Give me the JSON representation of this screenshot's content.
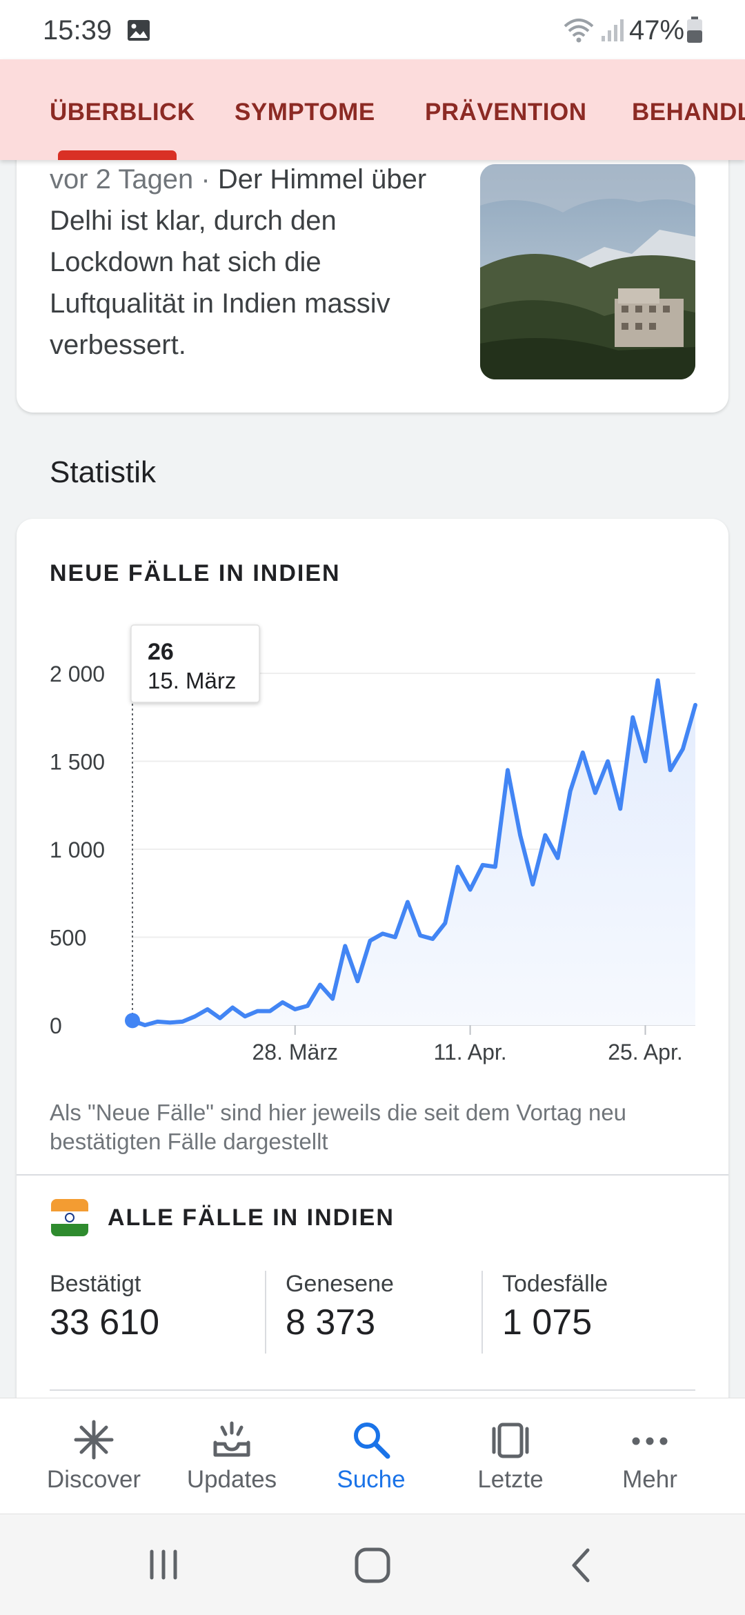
{
  "status_bar": {
    "time": "15:39",
    "battery": "47%"
  },
  "tabs": [
    {
      "label": "ÜBERBLICK",
      "active": true
    },
    {
      "label": "SYMPTOME"
    },
    {
      "label": "PRÄVENTION"
    },
    {
      "label": "BEHANDL"
    }
  ],
  "article": {
    "date": "vor 2 Tagen · ",
    "text": "Der Himmel über Delhi ist klar, durch den Lockdown hat sich die Luftqualität in Indien massiv verbessert."
  },
  "section_title": "Statistik",
  "chart_data": {
    "type": "area",
    "title": "NEUE FÄLLE IN INDIEN",
    "x_tick_labels": [
      "28. März",
      "11. Apr.",
      "25. Apr."
    ],
    "x_tick_dates": [
      "2020-03-28",
      "2020-04-11",
      "2020-04-25"
    ],
    "y_tick_labels": [
      "0",
      "500",
      "1 000",
      "1 500",
      "2 000"
    ],
    "y_ticks": [
      0,
      500,
      1000,
      1500,
      2000
    ],
    "ylim": [
      0,
      2000
    ],
    "grid": true,
    "x": [
      "2020-03-15",
      "2020-03-16",
      "2020-03-17",
      "2020-03-18",
      "2020-03-19",
      "2020-03-20",
      "2020-03-21",
      "2020-03-22",
      "2020-03-23",
      "2020-03-24",
      "2020-03-25",
      "2020-03-26",
      "2020-03-27",
      "2020-03-28",
      "2020-03-29",
      "2020-03-30",
      "2020-03-31",
      "2020-04-01",
      "2020-04-02",
      "2020-04-03",
      "2020-04-04",
      "2020-04-05",
      "2020-04-06",
      "2020-04-07",
      "2020-04-08",
      "2020-04-09",
      "2020-04-10",
      "2020-04-11",
      "2020-04-12",
      "2020-04-13",
      "2020-04-14",
      "2020-04-15",
      "2020-04-16",
      "2020-04-17",
      "2020-04-18",
      "2020-04-19",
      "2020-04-20",
      "2020-04-21",
      "2020-04-22",
      "2020-04-23",
      "2020-04-24",
      "2020-04-25",
      "2020-04-26",
      "2020-04-27",
      "2020-04-28",
      "2020-04-29"
    ],
    "values": [
      26,
      0,
      20,
      15,
      20,
      50,
      90,
      40,
      100,
      50,
      80,
      80,
      130,
      90,
      110,
      230,
      150,
      450,
      250,
      480,
      520,
      500,
      700,
      510,
      490,
      580,
      900,
      770,
      910,
      900,
      1450,
      1080,
      800,
      1080,
      950,
      1330,
      1550,
      1320,
      1500,
      1230,
      1750,
      1500,
      1960,
      1450,
      1570,
      1820
    ],
    "tooltip": {
      "value": "26",
      "date": "15. März"
    },
    "line_color": "#4285f4"
  },
  "chart_note": "Als \"Neue Fälle\" sind hier jeweils die seit dem Vortag neu bestätigten Fälle dargestellt",
  "all_cases": {
    "title": "ALLE FÄLLE IN INDIEN",
    "confirmed_label": "Bestätigt",
    "confirmed_value": "33 610",
    "recovered_label": "Genesene",
    "recovered_value": "8 373",
    "deaths_label": "Todesfälle",
    "deaths_value": "1 075"
  },
  "bottom_nav": [
    {
      "label": "Discover",
      "icon": "asterisk-icon"
    },
    {
      "label": "Updates",
      "icon": "updates-tray-icon"
    },
    {
      "label": "Suche",
      "icon": "search-icon",
      "active": true
    },
    {
      "label": "Letzte",
      "icon": "recent-cards-icon"
    },
    {
      "label": "Mehr",
      "icon": "more-dots-icon"
    }
  ],
  "colors": {
    "accent": "#1a73e8",
    "tab_bg": "#fcdcdc",
    "tab_text": "#8c2a24",
    "tab_indicator": "#d93025"
  }
}
